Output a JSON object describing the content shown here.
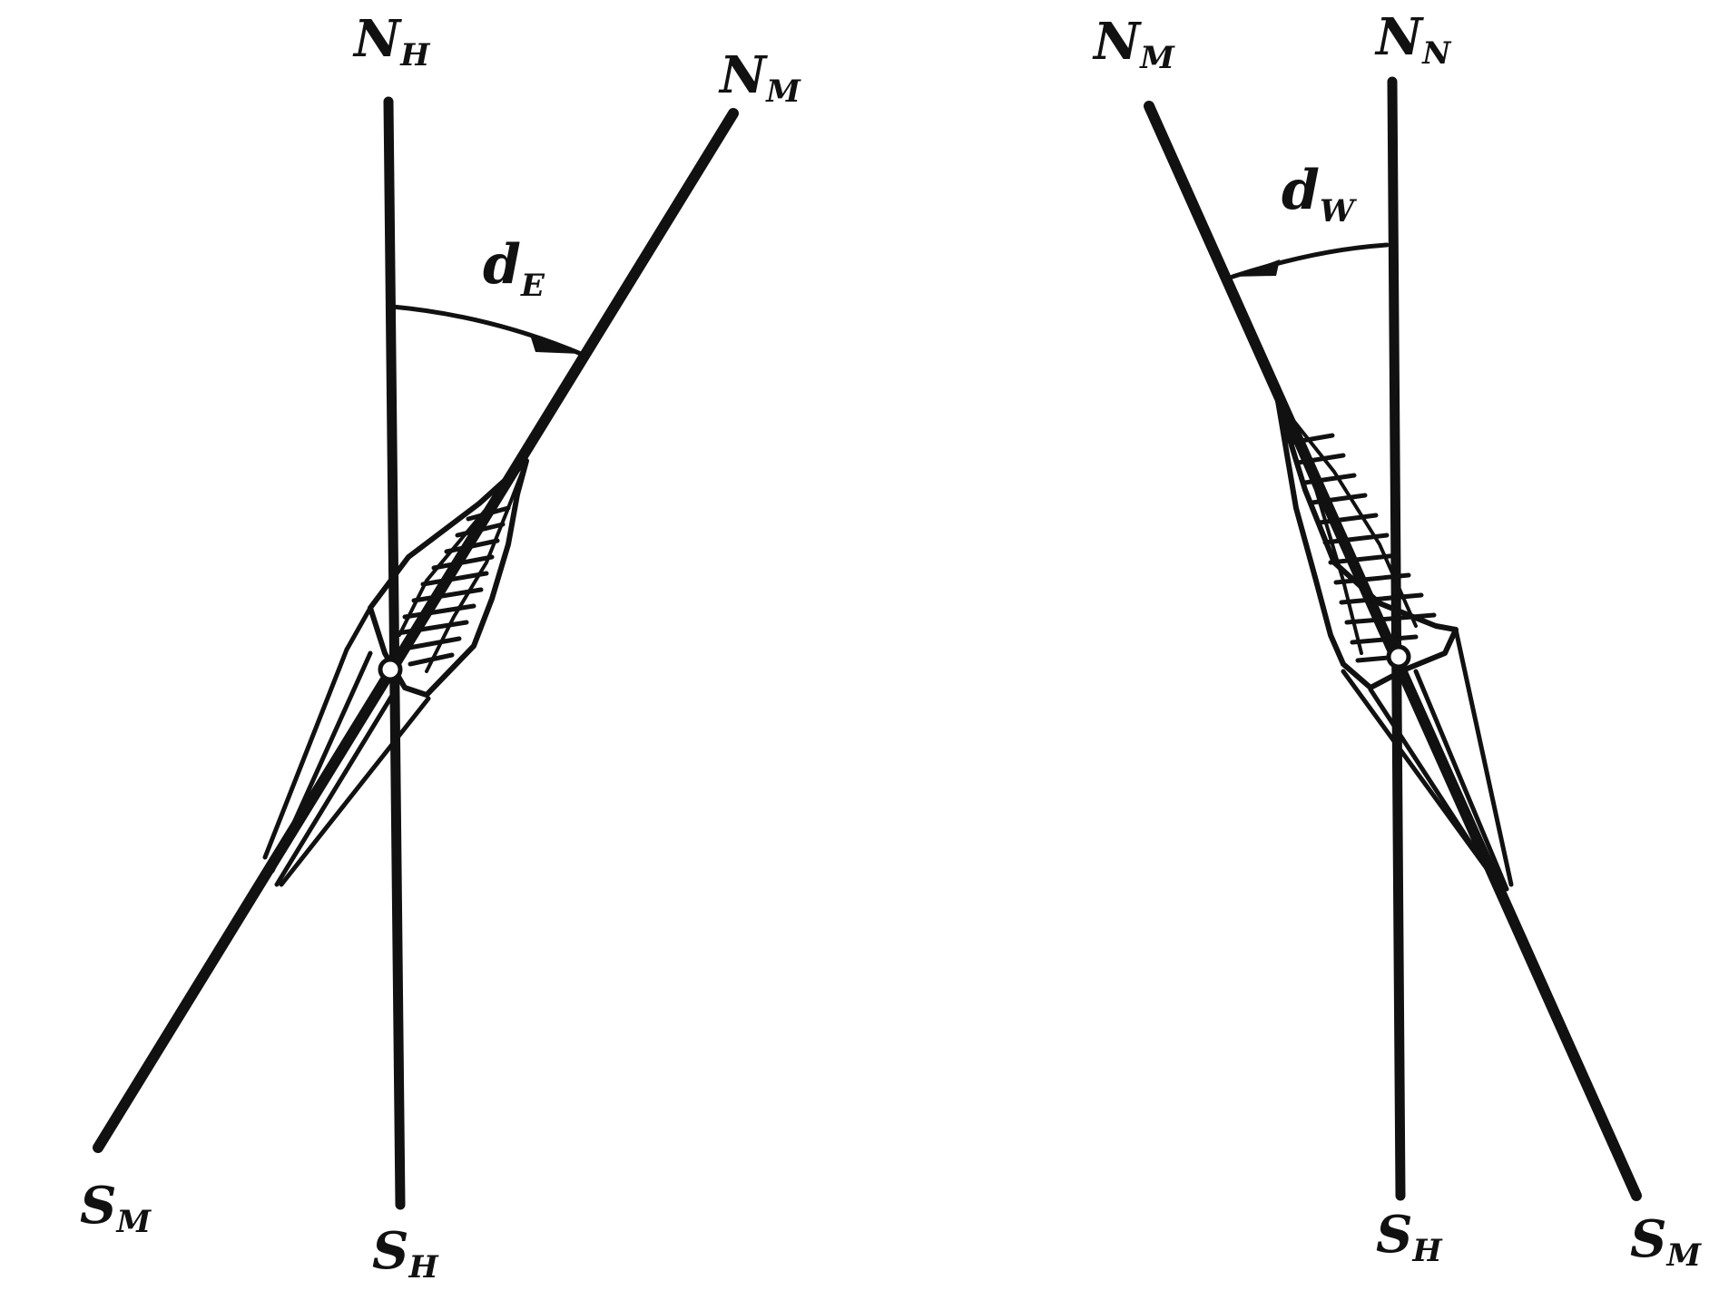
{
  "left_diagram": {
    "true_north": {
      "main": "N",
      "sub": "H"
    },
    "magnetic_north": {
      "main": "N",
      "sub": "M"
    },
    "magnetic_south": {
      "main": "S",
      "sub": "M"
    },
    "true_south": {
      "main": "S",
      "sub": "H"
    },
    "declination": {
      "main": "d",
      "sub": "E"
    }
  },
  "right_diagram": {
    "magnetic_north": {
      "main": "N",
      "sub": "M"
    },
    "true_north": {
      "main": "N",
      "sub": "N"
    },
    "declination": {
      "main": "d",
      "sub": "W"
    },
    "true_south": {
      "main": "S",
      "sub": "H"
    },
    "magnetic_south": {
      "main": "S",
      "sub": "M"
    }
  },
  "colors": {
    "ink": "#111111",
    "background": "#ffffff"
  }
}
